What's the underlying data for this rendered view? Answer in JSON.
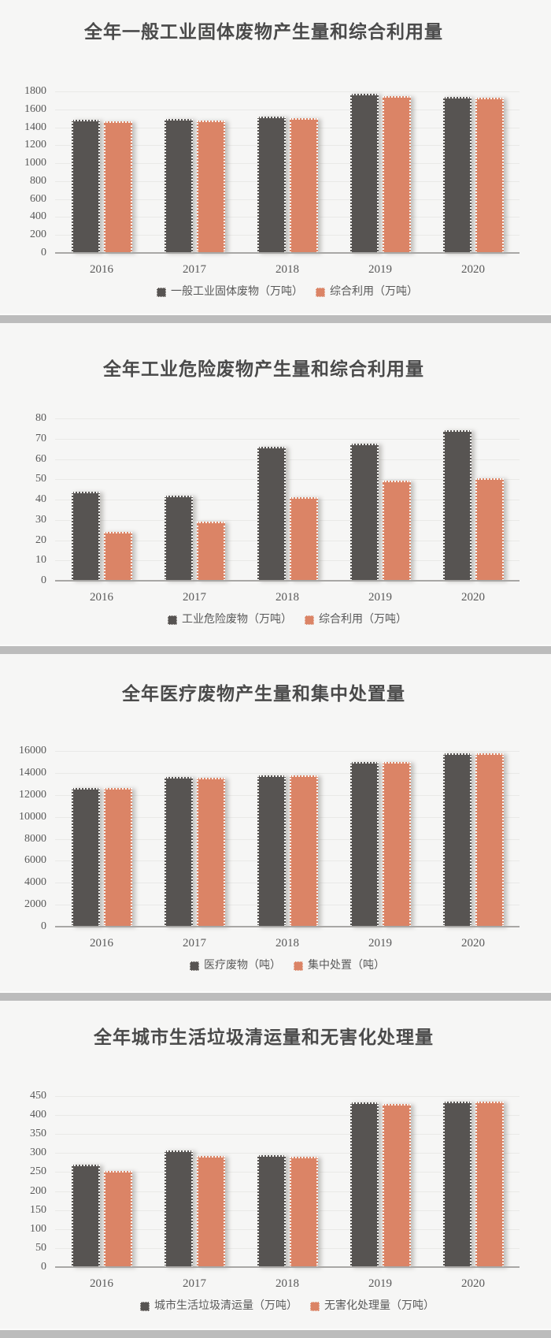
{
  "page": {
    "background": "#f6f6f5",
    "separator_color": "#bcbcbc",
    "text_color": "#595959",
    "title_color": "#4a4a4a",
    "gridline_color": "#e9e9e7",
    "axis_line_color": "#a8a7a5"
  },
  "chart_data": [
    {
      "type": "bar",
      "title": "全年一般工业固体废物产生量和综合利用量",
      "categories": [
        "2016",
        "2017",
        "2018",
        "2019",
        "2020"
      ],
      "series": [
        {
          "name": "一般工业固体废物（万吨）",
          "color": "#575452",
          "values": [
            1485,
            1495,
            1520,
            1775,
            1737
          ]
        },
        {
          "name": "综合利用（万吨）",
          "color": "#db8466",
          "values": [
            1470,
            1475,
            1505,
            1748,
            1730
          ]
        }
      ],
      "xlabel": "",
      "ylabel": "",
      "ylim": [
        0,
        1800
      ],
      "ytick_step": 200,
      "grid": true,
      "legend_position": "bottom"
    },
    {
      "type": "bar",
      "title": "全年工业危险废物产生量和综合利用量",
      "categories": [
        "2016",
        "2017",
        "2018",
        "2019",
        "2020"
      ],
      "series": [
        {
          "name": "工业危险废物（万吨）",
          "color": "#575452",
          "values": [
            44,
            42,
            66,
            67.5,
            74
          ]
        },
        {
          "name": "综合利用（万吨）",
          "color": "#db8466",
          "values": [
            24,
            29,
            41,
            49.5,
            50.5
          ]
        }
      ],
      "xlabel": "",
      "ylabel": "",
      "ylim": [
        0,
        80
      ],
      "ytick_step": 10,
      "grid": true,
      "legend_position": "bottom"
    },
    {
      "type": "bar",
      "title": "全年医疗废物产生量和集中处置量",
      "categories": [
        "2016",
        "2017",
        "2018",
        "2019",
        "2020"
      ],
      "series": [
        {
          "name": "医疗废物（吨）",
          "color": "#575452",
          "values": [
            12650,
            13600,
            13780,
            15000,
            15780
          ]
        },
        {
          "name": "集中处置（吨）",
          "color": "#db8466",
          "values": [
            12660,
            13590,
            13760,
            14990,
            15800
          ]
        }
      ],
      "xlabel": "",
      "ylabel": "",
      "ylim": [
        0,
        16000
      ],
      "ytick_step": 2000,
      "grid": true,
      "legend_position": "bottom"
    },
    {
      "type": "bar",
      "title": "全年城市生活垃圾清运量和无害化处理量",
      "categories": [
        "2016",
        "2017",
        "2018",
        "2019",
        "2020"
      ],
      "series": [
        {
          "name": "城市生活垃圾清运量（万吨）",
          "color": "#575452",
          "values": [
            269,
            307,
            295,
            433,
            435
          ]
        },
        {
          "name": "无害化处理量（万吨）",
          "color": "#db8466",
          "values": [
            253,
            293,
            290,
            430,
            435
          ]
        }
      ],
      "xlabel": "",
      "ylabel": "",
      "ylim": [
        0,
        450
      ],
      "ytick_step": 50,
      "grid": true,
      "legend_position": "bottom"
    }
  ]
}
